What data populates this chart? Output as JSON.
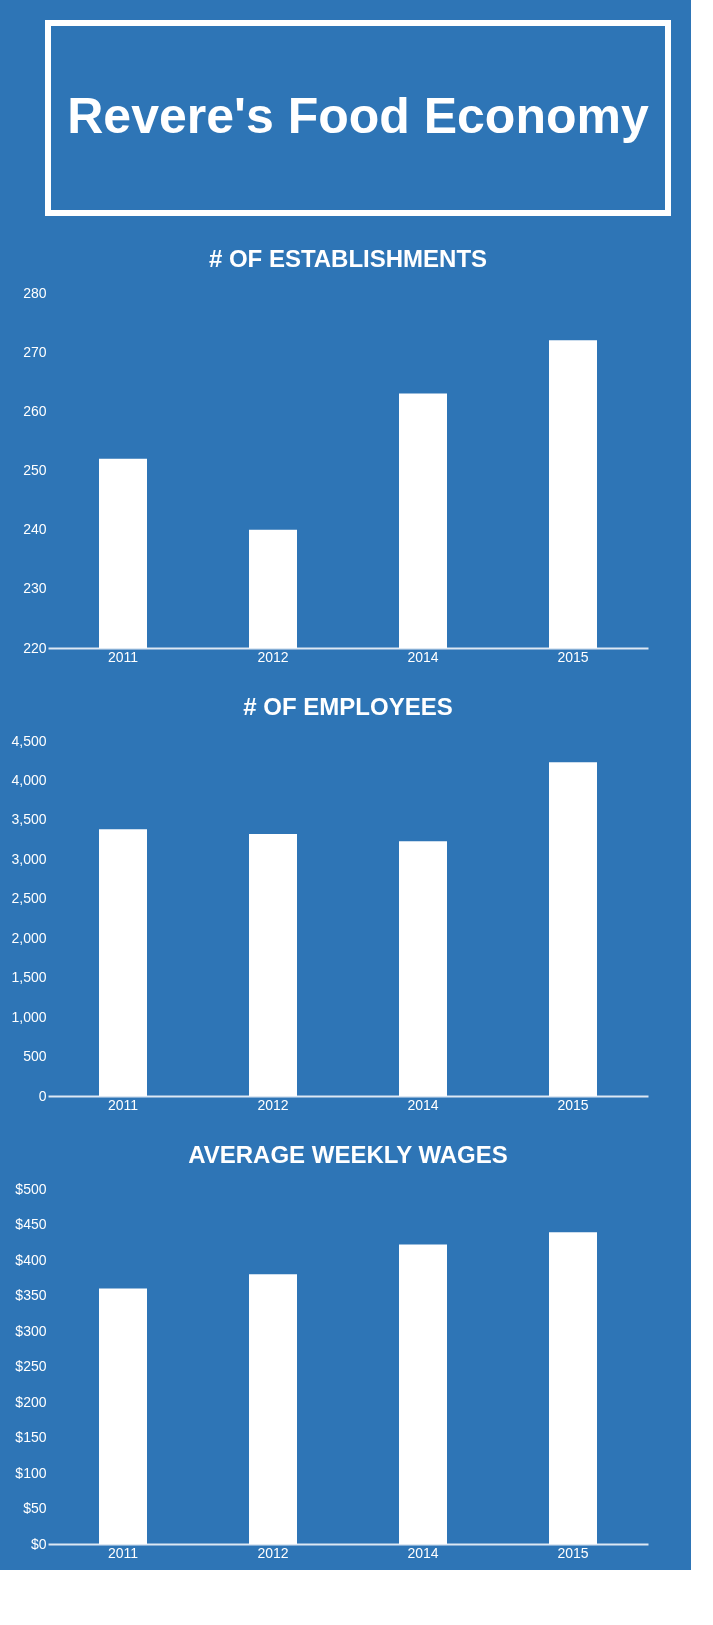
{
  "chart_data": [
    {
      "type": "other",
      "title": "Revere's Food Economy"
    },
    {
      "type": "bar",
      "title": "# OF ESTABLISHMENTS",
      "categories": [
        "2011",
        "2012",
        "2014",
        "2015"
      ],
      "values": [
        252,
        240,
        263,
        272
      ],
      "color": "#ffffff",
      "ylim": [
        220,
        280
      ],
      "yticks": [
        220,
        230,
        240,
        250,
        260,
        270,
        280
      ],
      "grid": false
    },
    {
      "type": "bar",
      "title": "# OF EMPLOYEES",
      "categories": [
        "2011",
        "2012",
        "2014",
        "2015"
      ],
      "values": [
        3380,
        3320,
        3230,
        4230
      ],
      "color": "#ffffff",
      "ylim": [
        0,
        4500
      ],
      "yticks": [
        0,
        500,
        {
          "value": 1000,
          "label": "1,000"
        },
        {
          "value": 1500,
          "label": "1,500"
        },
        {
          "value": 2000,
          "label": "2,000"
        },
        {
          "value": 2500,
          "label": "2,500"
        },
        {
          "value": 3000,
          "label": "3,000"
        },
        {
          "value": 3500,
          "label": "3,500"
        },
        {
          "value": 4000,
          "label": "4,000"
        },
        {
          "value": 4500,
          "label": "4,500"
        }
      ],
      "grid": false
    },
    {
      "type": "bar",
      "title": "AVERAGE WEEKLY WAGES",
      "categories": [
        "2011",
        "2012",
        "2014",
        "2015"
      ],
      "values": [
        360,
        380,
        422,
        439
      ],
      "color": "#ffffff",
      "ylim": [
        0,
        500
      ],
      "yticks": [
        {
          "value": 0,
          "label": "$0"
        },
        {
          "value": 50,
          "label": "$50"
        },
        {
          "value": 100,
          "label": "$100"
        },
        {
          "value": 150,
          "label": "$150"
        },
        {
          "value": 200,
          "label": "$200"
        },
        {
          "value": 250,
          "label": "$250"
        },
        {
          "value": 300,
          "label": "$300"
        },
        {
          "value": 350,
          "label": "$350"
        },
        {
          "value": 400,
          "label": "$400"
        },
        {
          "value": 450,
          "label": "$450"
        },
        {
          "value": 500,
          "label": "$500"
        }
      ],
      "grid": false
    }
  ]
}
